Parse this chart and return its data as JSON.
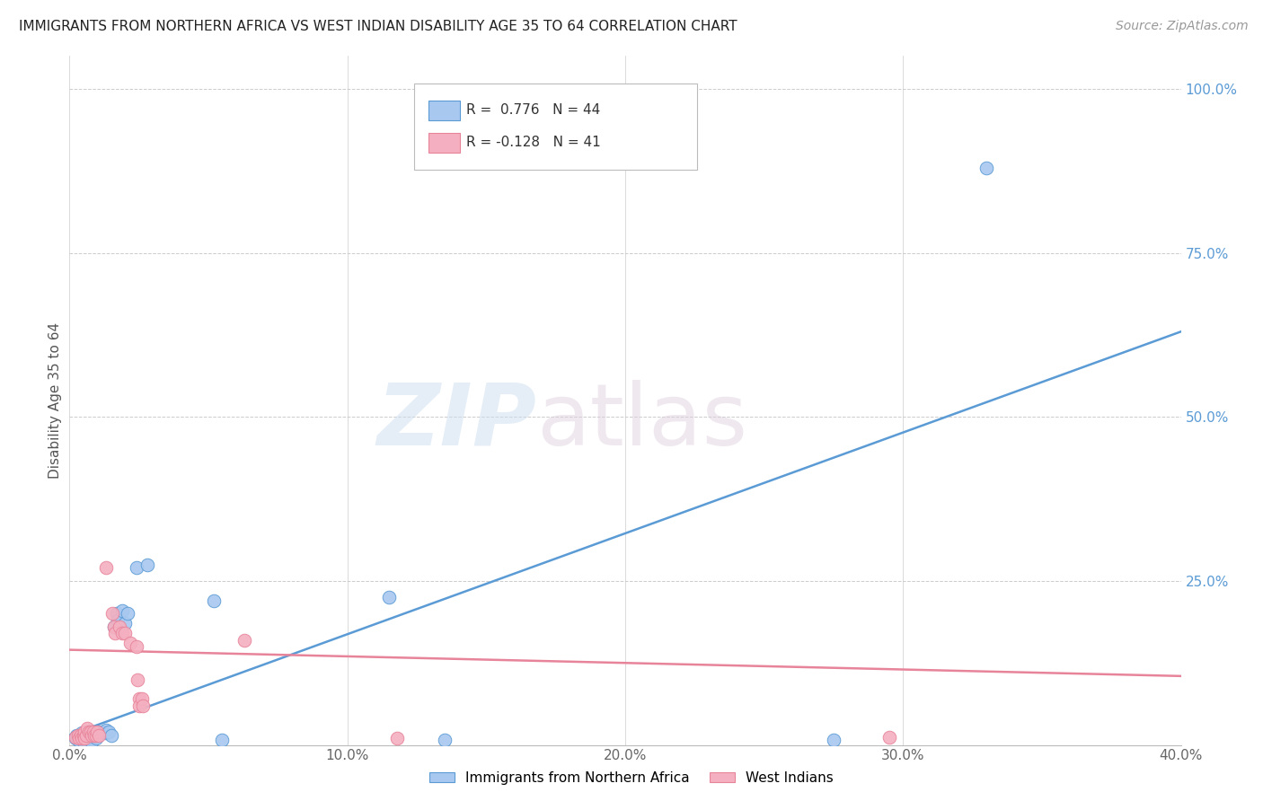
{
  "title": "IMMIGRANTS FROM NORTHERN AFRICA VS WEST INDIAN DISABILITY AGE 35 TO 64 CORRELATION CHART",
  "source": "Source: ZipAtlas.com",
  "xlim": [
    0,
    40.0
  ],
  "ylim": [
    0,
    105.0
  ],
  "blue_scatter": [
    [
      0.2,
      1.0
    ],
    [
      0.25,
      1.5
    ],
    [
      0.3,
      0.8
    ],
    [
      0.35,
      1.2
    ],
    [
      0.4,
      1.0
    ],
    [
      0.45,
      1.8
    ],
    [
      0.5,
      0.5
    ],
    [
      0.5,
      1.5
    ],
    [
      0.6,
      1.0
    ],
    [
      0.6,
      1.8
    ],
    [
      0.65,
      2.0
    ],
    [
      0.7,
      1.2
    ],
    [
      0.75,
      1.5
    ],
    [
      0.8,
      0.5
    ],
    [
      0.85,
      2.0
    ],
    [
      0.9,
      1.5
    ],
    [
      0.95,
      1.0
    ],
    [
      1.0,
      2.0
    ],
    [
      1.1,
      1.8
    ],
    [
      1.2,
      2.0
    ],
    [
      1.3,
      1.8
    ],
    [
      1.3,
      2.2
    ],
    [
      1.4,
      2.0
    ],
    [
      1.5,
      1.5
    ],
    [
      1.6,
      18.0
    ],
    [
      1.7,
      20.0
    ],
    [
      1.75,
      19.0
    ],
    [
      1.9,
      20.5
    ],
    [
      2.0,
      18.5
    ],
    [
      2.1,
      20.0
    ],
    [
      2.4,
      27.0
    ],
    [
      2.8,
      27.5
    ],
    [
      5.2,
      22.0
    ],
    [
      5.5,
      0.8
    ],
    [
      11.5,
      22.5
    ],
    [
      13.5,
      0.8
    ],
    [
      27.5,
      0.8
    ],
    [
      33.0,
      88.0
    ]
  ],
  "pink_scatter": [
    [
      0.2,
      1.2
    ],
    [
      0.3,
      1.5
    ],
    [
      0.35,
      1.0
    ],
    [
      0.4,
      1.5
    ],
    [
      0.45,
      1.0
    ],
    [
      0.5,
      1.5
    ],
    [
      0.55,
      2.0
    ],
    [
      0.55,
      1.0
    ],
    [
      0.6,
      1.5
    ],
    [
      0.65,
      2.5
    ],
    [
      0.7,
      2.0
    ],
    [
      0.75,
      2.0
    ],
    [
      0.8,
      1.5
    ],
    [
      0.85,
      2.0
    ],
    [
      0.9,
      1.5
    ],
    [
      0.95,
      1.5
    ],
    [
      1.0,
      2.0
    ],
    [
      1.05,
      1.5
    ],
    [
      1.3,
      27.0
    ],
    [
      1.55,
      20.0
    ],
    [
      1.6,
      18.0
    ],
    [
      1.65,
      17.0
    ],
    [
      1.8,
      18.0
    ],
    [
      1.9,
      17.0
    ],
    [
      2.0,
      17.0
    ],
    [
      2.2,
      15.5
    ],
    [
      2.4,
      15.0
    ],
    [
      2.45,
      10.0
    ],
    [
      2.5,
      7.0
    ],
    [
      2.5,
      6.0
    ],
    [
      2.6,
      7.0
    ],
    [
      2.65,
      6.0
    ],
    [
      6.3,
      16.0
    ],
    [
      11.8,
      1.0
    ],
    [
      29.5,
      1.2
    ]
  ],
  "blue_line_x": [
    0.0,
    40.0
  ],
  "blue_line_y": [
    1.5,
    63.0
  ],
  "pink_line_x": [
    0.0,
    40.0
  ],
  "pink_line_y": [
    14.5,
    10.5
  ],
  "blue_color": "#5b9bd5",
  "pink_color": "#e8849a",
  "blue_scatter_color": "#a8c8f0",
  "pink_scatter_color": "#f4b0c0",
  "grid_color": "#cccccc",
  "tick_color_right": "#5b9bd5",
  "tick_color_bottom": "#666666",
  "ylabel": "Disability Age 35 to 64",
  "r_blue_label": "R =  0.776   N = 44",
  "r_pink_label": "R = -0.128   N = 41",
  "legend_label_blue": "Immigrants from Northern Africa",
  "legend_label_pink": "West Indians"
}
